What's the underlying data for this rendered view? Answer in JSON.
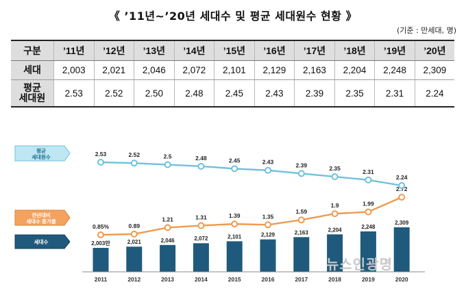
{
  "title": "《 ’11년~’20년 세대수 및 평균 세대원수 현황 》",
  "unit": "(기준 : 만세대, 명)",
  "table": {
    "corner": "구분",
    "years": [
      "’11년",
      "’12년",
      "’13년",
      "’14년",
      "’15년",
      "’16년",
      "’17년",
      "’18년",
      "’19년",
      "’20년"
    ],
    "rows": [
      {
        "label": "세대",
        "values": [
          "2,003",
          "2,021",
          "2,046",
          "2,072",
          "2,101",
          "2,129",
          "2,163",
          "2,204",
          "2,248",
          "2,309"
        ]
      },
      {
        "label": "평균\n세대원",
        "values": [
          "2.53",
          "2.52",
          "2.50",
          "2.48",
          "2.45",
          "2.43",
          "2.39",
          "2.35",
          "2.31",
          "2.24"
        ]
      }
    ]
  },
  "chart_data": {
    "type": "bar",
    "categories": [
      "2011",
      "2012",
      "2013",
      "2014",
      "2015",
      "2016",
      "2017",
      "2018",
      "2019",
      "2020"
    ],
    "series": [
      {
        "name": "평균\n세대원수",
        "kind": "line",
        "color": "#6ec1dc",
        "values": [
          2.53,
          2.52,
          2.5,
          2.48,
          2.45,
          2.43,
          2.39,
          2.35,
          2.31,
          2.24
        ],
        "labels": [
          "2.53",
          "2.52",
          "2.5",
          "2.48",
          "2.45",
          "2.43",
          "2.39",
          "2.35",
          "2.31",
          "2.24"
        ]
      },
      {
        "name": "전년대비\n세대수 증가율",
        "kind": "line",
        "color": "#ef9a4e",
        "values": [
          0.85,
          0.89,
          1.21,
          1.31,
          1.39,
          1.35,
          1.59,
          1.9,
          1.99,
          2.72
        ],
        "labels": [
          "0.85%",
          "0.89",
          "1.21",
          "1.31",
          "1.39",
          "1.35",
          "1.59",
          "1.9",
          "1.99",
          "2.72"
        ]
      },
      {
        "name": "세대수",
        "kind": "bar",
        "color": "#1f5a7c",
        "values": [
          2003,
          2021,
          2046,
          2072,
          2101,
          2129,
          2163,
          2204,
          2248,
          2309
        ],
        "labels": [
          "2,003만",
          "2,021",
          "2,046",
          "2,072",
          "2,101",
          "2,129",
          "2,163",
          "2,204",
          "2,248",
          "2,309"
        ]
      }
    ],
    "xlabel": "",
    "ylabel": "",
    "grid": false
  },
  "watermark": "뉴스인광명"
}
